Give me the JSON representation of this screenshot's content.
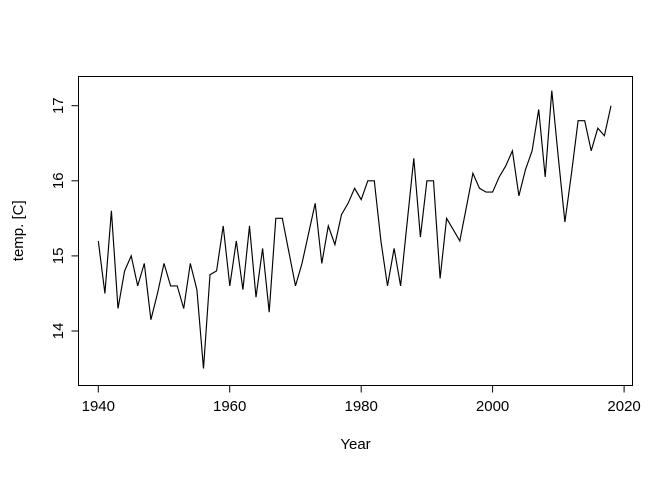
{
  "figure": {
    "background_color": "#ffffff",
    "line_color": "#000000",
    "text_color": "#000000"
  },
  "chart_data": {
    "type": "line",
    "xlabel": "Year",
    "ylabel": "temp. [C]",
    "grid": false,
    "legend": null,
    "xlim": [
      1936.9,
      2021.1
    ],
    "ylim": [
      13.35,
      17.35
    ],
    "x_ticks": [
      1940,
      1960,
      1980,
      2000,
      2020
    ],
    "y_ticks": [
      14,
      15,
      16,
      17
    ],
    "years": [
      1940,
      1941,
      1942,
      1943,
      1944,
      1945,
      1946,
      1947,
      1948,
      1949,
      1950,
      1951,
      1952,
      1953,
      1954,
      1955,
      1956,
      1957,
      1958,
      1959,
      1960,
      1961,
      1962,
      1963,
      1964,
      1965,
      1966,
      1967,
      1968,
      1969,
      1970,
      1971,
      1972,
      1973,
      1974,
      1975,
      1976,
      1977,
      1978,
      1979,
      1980,
      1981,
      1982,
      1983,
      1984,
      1985,
      1986,
      1987,
      1988,
      1989,
      1990,
      1991,
      1992,
      1993,
      1994,
      1995,
      1996,
      1997,
      1998,
      1999,
      2000,
      2001,
      2002,
      2003,
      2004,
      2005,
      2006,
      2007,
      2008,
      2009,
      2010,
      2011,
      2012,
      2013,
      2014,
      2015,
      2016,
      2017,
      2018
    ],
    "values": [
      15.2,
      14.5,
      15.6,
      14.3,
      14.8,
      15.0,
      14.6,
      14.9,
      14.15,
      14.5,
      14.9,
      14.6,
      14.6,
      14.3,
      14.9,
      14.55,
      13.5,
      14.75,
      14.8,
      15.4,
      14.6,
      15.2,
      14.55,
      15.4,
      14.45,
      15.1,
      14.25,
      15.5,
      15.5,
      15.05,
      14.6,
      14.9,
      15.3,
      15.7,
      14.9,
      15.4,
      15.15,
      15.55,
      15.7,
      15.9,
      15.75,
      16.0,
      16.0,
      15.2,
      14.6,
      15.1,
      14.6,
      15.45,
      16.3,
      15.25,
      16.0,
      16.0,
      14.7,
      15.5,
      15.35,
      15.2,
      15.65,
      16.1,
      15.9,
      15.85,
      15.85,
      16.05,
      16.2,
      16.4,
      15.8,
      16.15,
      16.4,
      16.95,
      16.05,
      17.2,
      16.3,
      15.45,
      16.1,
      16.8,
      16.8,
      16.4,
      16.7,
      16.6,
      17.0
    ]
  }
}
